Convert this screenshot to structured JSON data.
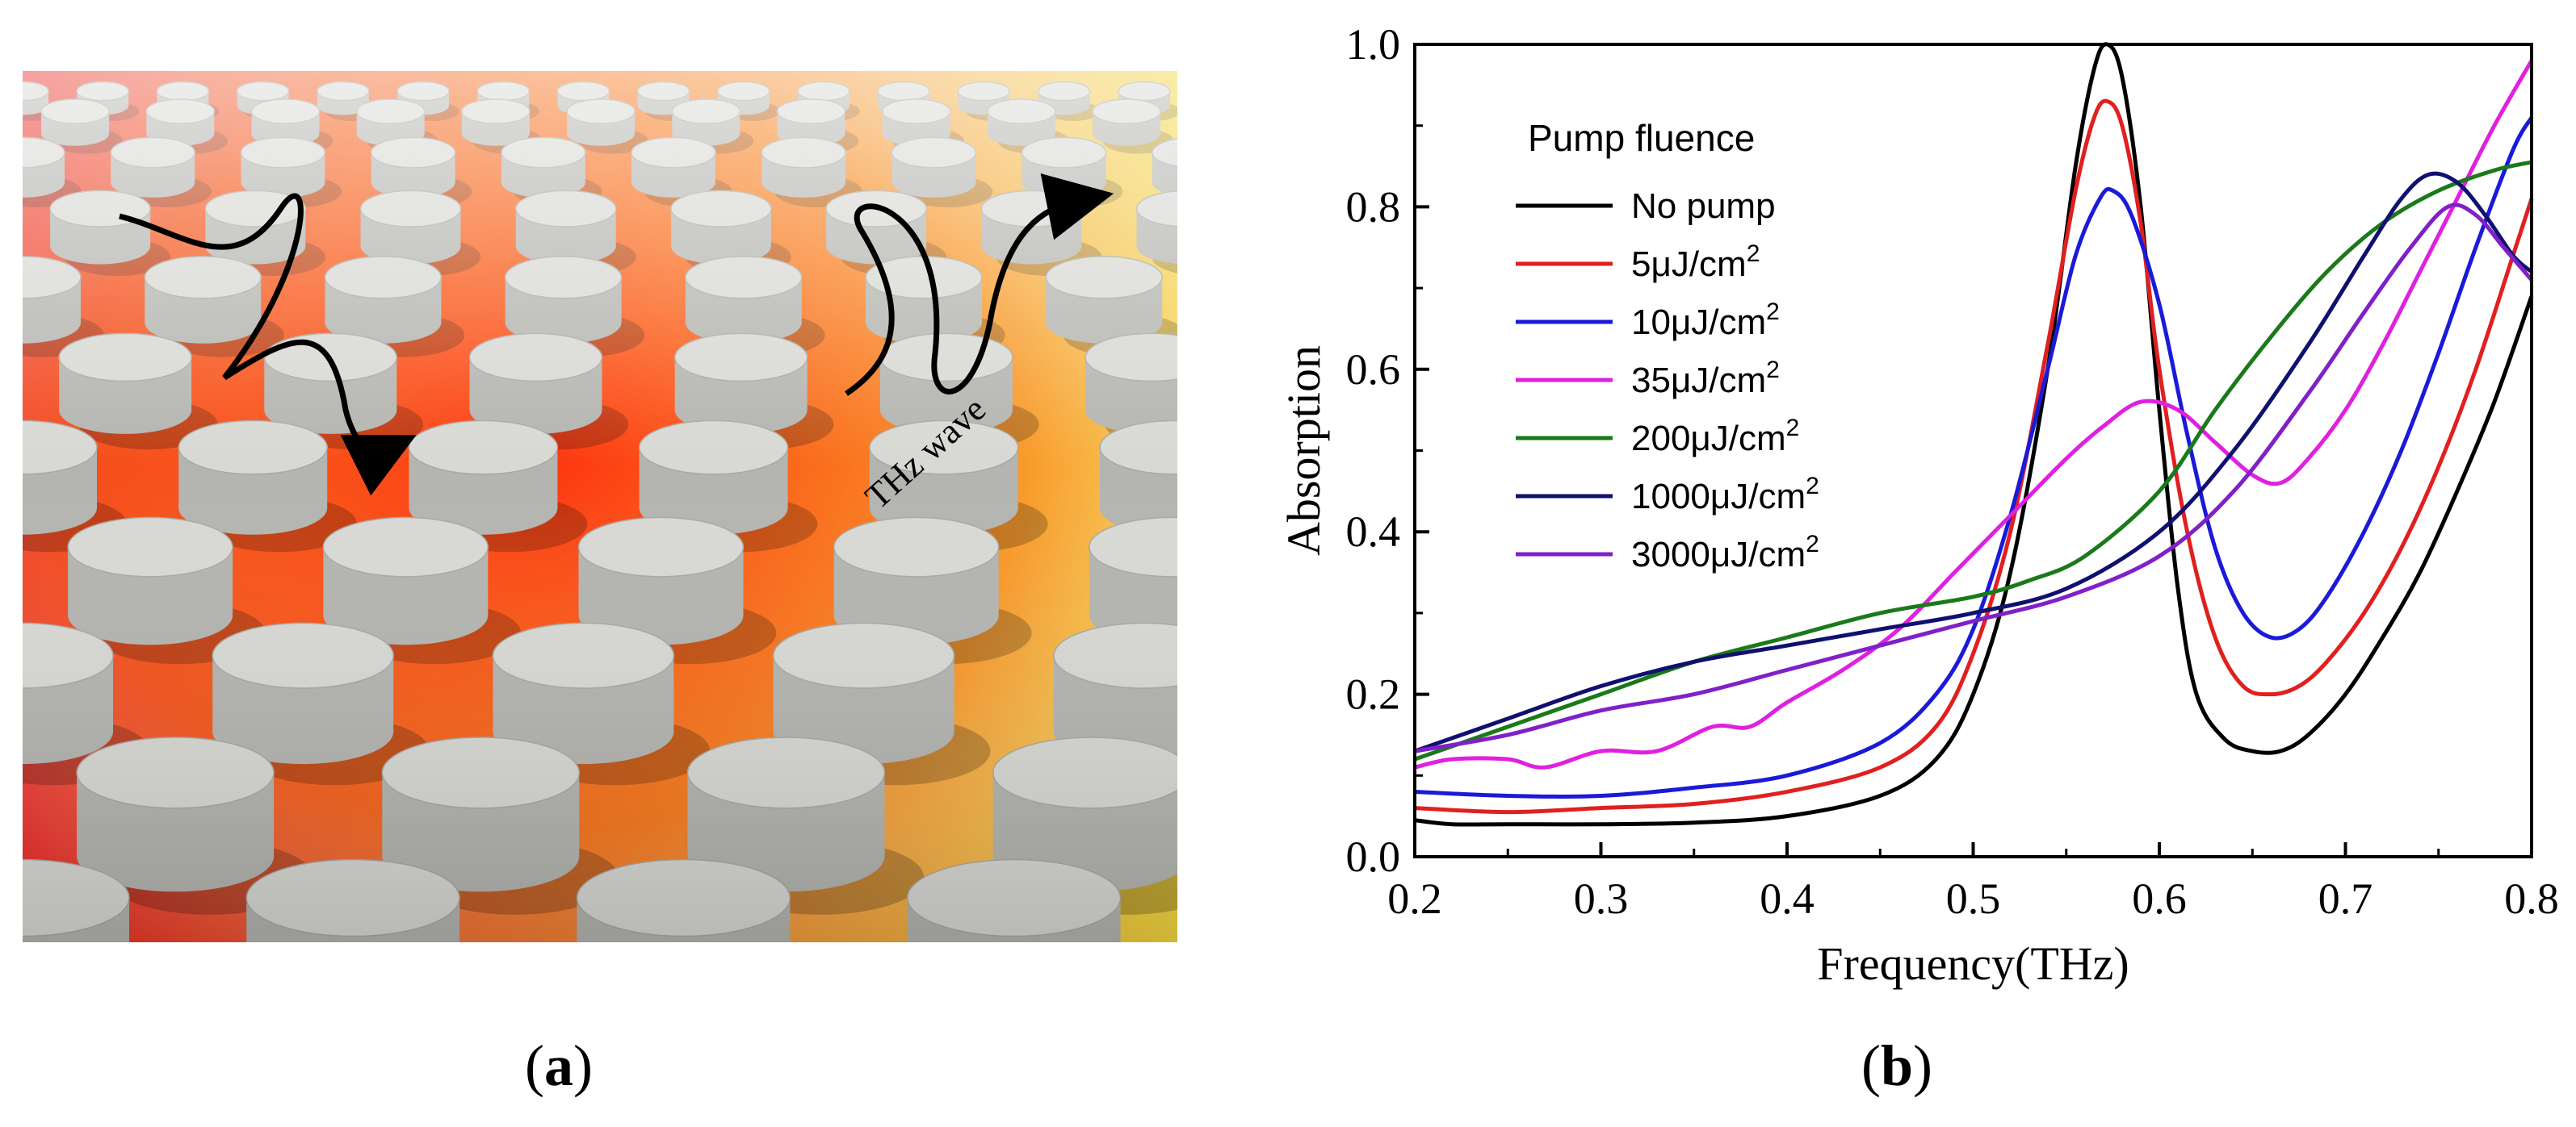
{
  "panel_a": {
    "caption_letter": "a",
    "wave_label": "THz wave",
    "colors": {
      "hot": "#e81818",
      "mid": "#f07a18",
      "warm": "#f2d640",
      "cool": "#c8c8c8",
      "pillar_top": "#d8d8d4",
      "pillar_side": "#b4b4b0"
    }
  },
  "panel_b": {
    "caption_letter": "b"
  },
  "chart_data": {
    "type": "line",
    "xlabel": "Frequency(THz)",
    "ylabel": "Absorption",
    "xlim": [
      0.2,
      0.8
    ],
    "ylim": [
      0.0,
      1.0
    ],
    "xticks": [
      "0.2",
      "0.3",
      "0.4",
      "0.5",
      "0.6",
      "0.7",
      "0.8"
    ],
    "yticks": [
      "0.0",
      "0.2",
      "0.4",
      "0.6",
      "0.8",
      "1.0"
    ],
    "legend_title": "Pump fluence",
    "legend_position": "top-left",
    "series": [
      {
        "name": "No pump",
        "base": "No pump",
        "sup": "",
        "color": "#000000",
        "points": [
          [
            0.2,
            0.045
          ],
          [
            0.22,
            0.04
          ],
          [
            0.25,
            0.04
          ],
          [
            0.3,
            0.04
          ],
          [
            0.35,
            0.042
          ],
          [
            0.4,
            0.05
          ],
          [
            0.45,
            0.075
          ],
          [
            0.48,
            0.12
          ],
          [
            0.5,
            0.2
          ],
          [
            0.52,
            0.35
          ],
          [
            0.54,
            0.6
          ],
          [
            0.555,
            0.85
          ],
          [
            0.565,
            0.97
          ],
          [
            0.572,
            1.0
          ],
          [
            0.58,
            0.96
          ],
          [
            0.59,
            0.8
          ],
          [
            0.6,
            0.55
          ],
          [
            0.61,
            0.33
          ],
          [
            0.62,
            0.2
          ],
          [
            0.635,
            0.145
          ],
          [
            0.65,
            0.13
          ],
          [
            0.665,
            0.13
          ],
          [
            0.68,
            0.15
          ],
          [
            0.7,
            0.2
          ],
          [
            0.72,
            0.27
          ],
          [
            0.74,
            0.35
          ],
          [
            0.76,
            0.45
          ],
          [
            0.78,
            0.56
          ],
          [
            0.8,
            0.69
          ]
        ]
      },
      {
        "name": "5μJ/cm2",
        "base": "5μJ/cm",
        "sup": "2",
        "color": "#e02020",
        "points": [
          [
            0.2,
            0.06
          ],
          [
            0.25,
            0.055
          ],
          [
            0.3,
            0.06
          ],
          [
            0.35,
            0.065
          ],
          [
            0.4,
            0.08
          ],
          [
            0.45,
            0.11
          ],
          [
            0.48,
            0.16
          ],
          [
            0.5,
            0.25
          ],
          [
            0.52,
            0.4
          ],
          [
            0.54,
            0.63
          ],
          [
            0.555,
            0.82
          ],
          [
            0.565,
            0.91
          ],
          [
            0.572,
            0.93
          ],
          [
            0.58,
            0.9
          ],
          [
            0.59,
            0.78
          ],
          [
            0.6,
            0.6
          ],
          [
            0.615,
            0.4
          ],
          [
            0.63,
            0.27
          ],
          [
            0.645,
            0.21
          ],
          [
            0.66,
            0.2
          ],
          [
            0.675,
            0.21
          ],
          [
            0.69,
            0.24
          ],
          [
            0.71,
            0.3
          ],
          [
            0.73,
            0.38
          ],
          [
            0.75,
            0.48
          ],
          [
            0.77,
            0.6
          ],
          [
            0.79,
            0.74
          ],
          [
            0.8,
            0.81
          ]
        ]
      },
      {
        "name": "10μJ/cm2",
        "base": "10μJ/cm",
        "sup": "2",
        "color": "#1a1ad8",
        "points": [
          [
            0.2,
            0.08
          ],
          [
            0.25,
            0.075
          ],
          [
            0.3,
            0.075
          ],
          [
            0.35,
            0.085
          ],
          [
            0.4,
            0.1
          ],
          [
            0.45,
            0.14
          ],
          [
            0.48,
            0.2
          ],
          [
            0.5,
            0.28
          ],
          [
            0.52,
            0.42
          ],
          [
            0.54,
            0.6
          ],
          [
            0.555,
            0.74
          ],
          [
            0.568,
            0.81
          ],
          [
            0.575,
            0.82
          ],
          [
            0.585,
            0.79
          ],
          [
            0.6,
            0.68
          ],
          [
            0.615,
            0.52
          ],
          [
            0.63,
            0.38
          ],
          [
            0.645,
            0.3
          ],
          [
            0.66,
            0.27
          ],
          [
            0.675,
            0.28
          ],
          [
            0.69,
            0.32
          ],
          [
            0.71,
            0.4
          ],
          [
            0.73,
            0.5
          ],
          [
            0.75,
            0.62
          ],
          [
            0.77,
            0.75
          ],
          [
            0.79,
            0.87
          ],
          [
            0.8,
            0.91
          ]
        ]
      },
      {
        "name": "35μJ/cm2",
        "base": "35μJ/cm",
        "sup": "2",
        "color": "#e020e0",
        "points": [
          [
            0.2,
            0.11
          ],
          [
            0.22,
            0.12
          ],
          [
            0.25,
            0.12
          ],
          [
            0.27,
            0.11
          ],
          [
            0.3,
            0.13
          ],
          [
            0.33,
            0.13
          ],
          [
            0.36,
            0.16
          ],
          [
            0.38,
            0.16
          ],
          [
            0.4,
            0.19
          ],
          [
            0.43,
            0.23
          ],
          [
            0.46,
            0.28
          ],
          [
            0.49,
            0.35
          ],
          [
            0.52,
            0.42
          ],
          [
            0.55,
            0.49
          ],
          [
            0.57,
            0.53
          ],
          [
            0.59,
            0.56
          ],
          [
            0.61,
            0.55
          ],
          [
            0.63,
            0.51
          ],
          [
            0.65,
            0.47
          ],
          [
            0.665,
            0.46
          ],
          [
            0.68,
            0.49
          ],
          [
            0.7,
            0.55
          ],
          [
            0.72,
            0.63
          ],
          [
            0.74,
            0.72
          ],
          [
            0.76,
            0.81
          ],
          [
            0.78,
            0.9
          ],
          [
            0.8,
            0.98
          ]
        ]
      },
      {
        "name": "200μJ/cm2",
        "base": "200μJ/cm",
        "sup": "2",
        "color": "#1a7a1a",
        "points": [
          [
            0.2,
            0.12
          ],
          [
            0.25,
            0.16
          ],
          [
            0.3,
            0.2
          ],
          [
            0.35,
            0.24
          ],
          [
            0.4,
            0.27
          ],
          [
            0.45,
            0.3
          ],
          [
            0.5,
            0.32
          ],
          [
            0.53,
            0.34
          ],
          [
            0.56,
            0.37
          ],
          [
            0.6,
            0.45
          ],
          [
            0.63,
            0.55
          ],
          [
            0.66,
            0.64
          ],
          [
            0.69,
            0.72
          ],
          [
            0.72,
            0.78
          ],
          [
            0.75,
            0.82
          ],
          [
            0.78,
            0.845
          ],
          [
            0.8,
            0.855
          ]
        ]
      },
      {
        "name": "1000μJ/cm2",
        "base": "1000μJ/cm",
        "sup": "2",
        "color": "#101070",
        "points": [
          [
            0.2,
            0.13
          ],
          [
            0.25,
            0.17
          ],
          [
            0.3,
            0.21
          ],
          [
            0.35,
            0.24
          ],
          [
            0.4,
            0.26
          ],
          [
            0.45,
            0.28
          ],
          [
            0.5,
            0.3
          ],
          [
            0.55,
            0.33
          ],
          [
            0.6,
            0.4
          ],
          [
            0.64,
            0.5
          ],
          [
            0.68,
            0.63
          ],
          [
            0.71,
            0.74
          ],
          [
            0.73,
            0.81
          ],
          [
            0.745,
            0.84
          ],
          [
            0.76,
            0.83
          ],
          [
            0.775,
            0.79
          ],
          [
            0.79,
            0.74
          ],
          [
            0.8,
            0.72
          ]
        ]
      },
      {
        "name": "3000μJ/cm2",
        "base": "3000μJ/cm",
        "sup": "2",
        "color": "#8020c8",
        "points": [
          [
            0.2,
            0.13
          ],
          [
            0.25,
            0.15
          ],
          [
            0.3,
            0.18
          ],
          [
            0.35,
            0.2
          ],
          [
            0.4,
            0.23
          ],
          [
            0.45,
            0.26
          ],
          [
            0.5,
            0.29
          ],
          [
            0.55,
            0.32
          ],
          [
            0.6,
            0.37
          ],
          [
            0.64,
            0.45
          ],
          [
            0.68,
            0.57
          ],
          [
            0.71,
            0.67
          ],
          [
            0.735,
            0.75
          ],
          [
            0.755,
            0.8
          ],
          [
            0.77,
            0.79
          ],
          [
            0.785,
            0.75
          ],
          [
            0.8,
            0.71
          ]
        ]
      }
    ]
  }
}
